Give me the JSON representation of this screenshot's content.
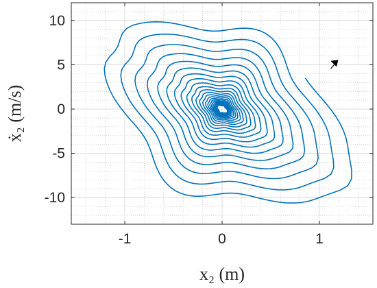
{
  "chart_data": {
    "type": "line",
    "title": "",
    "xlabel": "x₂ (m)",
    "ylabel": "ẋ₂ (m/s)",
    "xlim": [
      -1.55,
      1.55
    ],
    "ylim": [
      -13,
      12
    ],
    "x_ticks": [
      {
        "value": -1,
        "label": "-1"
      },
      {
        "value": 0,
        "label": "0"
      },
      {
        "value": 1,
        "label": "1"
      }
    ],
    "y_ticks": [
      {
        "value": 10,
        "label": "10"
      },
      {
        "value": 5,
        "label": "5"
      },
      {
        "value": 0,
        "label": "0"
      },
      {
        "value": -5,
        "label": "-5"
      },
      {
        "value": -10,
        "label": "-10"
      }
    ],
    "grid": true,
    "minor_grid": true,
    "legend": "none",
    "series": [
      {
        "description_free": true,
        "color": "#0072bd",
        "spiral_start": [
          1.1,
          4.5
        ],
        "contraction_per_turn": 0.86,
        "turns": 22,
        "switching_line_slope": 6.5,
        "direction": "clockwise"
      }
    ],
    "arrow": {
      "x": 1.16,
      "y": 5.1,
      "direction": "up-right",
      "color": "#000000"
    }
  },
  "colors": {
    "line": "#0072bd",
    "axes": "#262626",
    "grid": "#dcdcdc",
    "minor_grid": "#c8c8c8",
    "background": "#ffffff"
  }
}
